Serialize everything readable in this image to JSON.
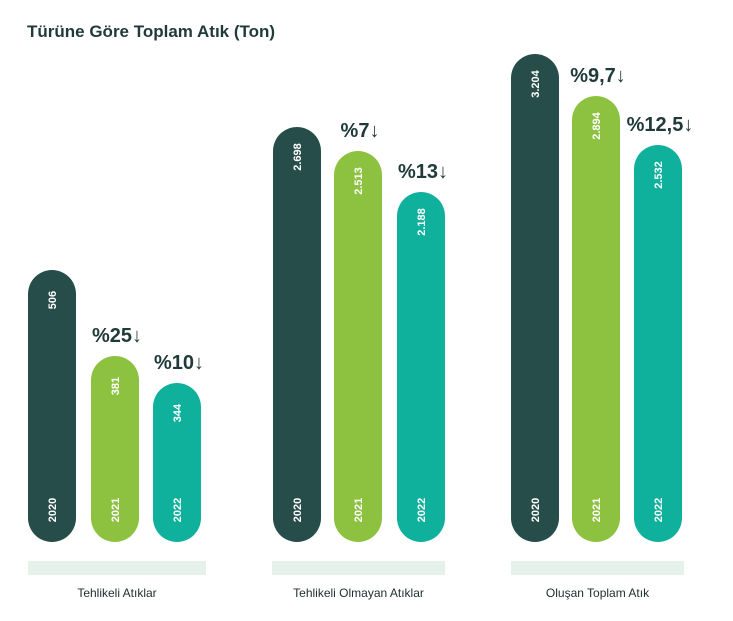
{
  "chart_data": {
    "type": "bar",
    "title": "Türüne Göre Toplam Atık (Ton)",
    "colors": {
      "2020": "#264d49",
      "2021": "#8cc23f",
      "2022": "#0fb19d",
      "label_band": "#e6f1ec",
      "text": "#1f3a38"
    },
    "groups": [
      {
        "name": "Tehlikeli Atıklar",
        "bars": [
          {
            "year": "2020",
            "value": 506,
            "label": "506",
            "change": ""
          },
          {
            "year": "2021",
            "value": 381,
            "label": "381",
            "change": "%25↓"
          },
          {
            "year": "2022",
            "value": 344,
            "label": "344",
            "change": "%10↓"
          }
        ]
      },
      {
        "name": "Tehlikeli Olmayan Atıklar",
        "bars": [
          {
            "year": "2020",
            "value": 2698,
            "label": "2.698",
            "change": ""
          },
          {
            "year": "2021",
            "value": 2513,
            "label": "2.513",
            "change": "%7↓"
          },
          {
            "year": "2022",
            "value": 2188,
            "label": "2.188",
            "change": "%13↓"
          }
        ]
      },
      {
        "name": "Oluşan Toplam Atık",
        "bars": [
          {
            "year": "2020",
            "value": 3204,
            "label": "3.204",
            "change": ""
          },
          {
            "year": "2021",
            "value": 2894,
            "label": "2.894",
            "change": "%9,7↓"
          },
          {
            "year": "2022",
            "value": 2532,
            "label": "2.532",
            "change": "%12,5↓"
          }
        ]
      }
    ]
  }
}
